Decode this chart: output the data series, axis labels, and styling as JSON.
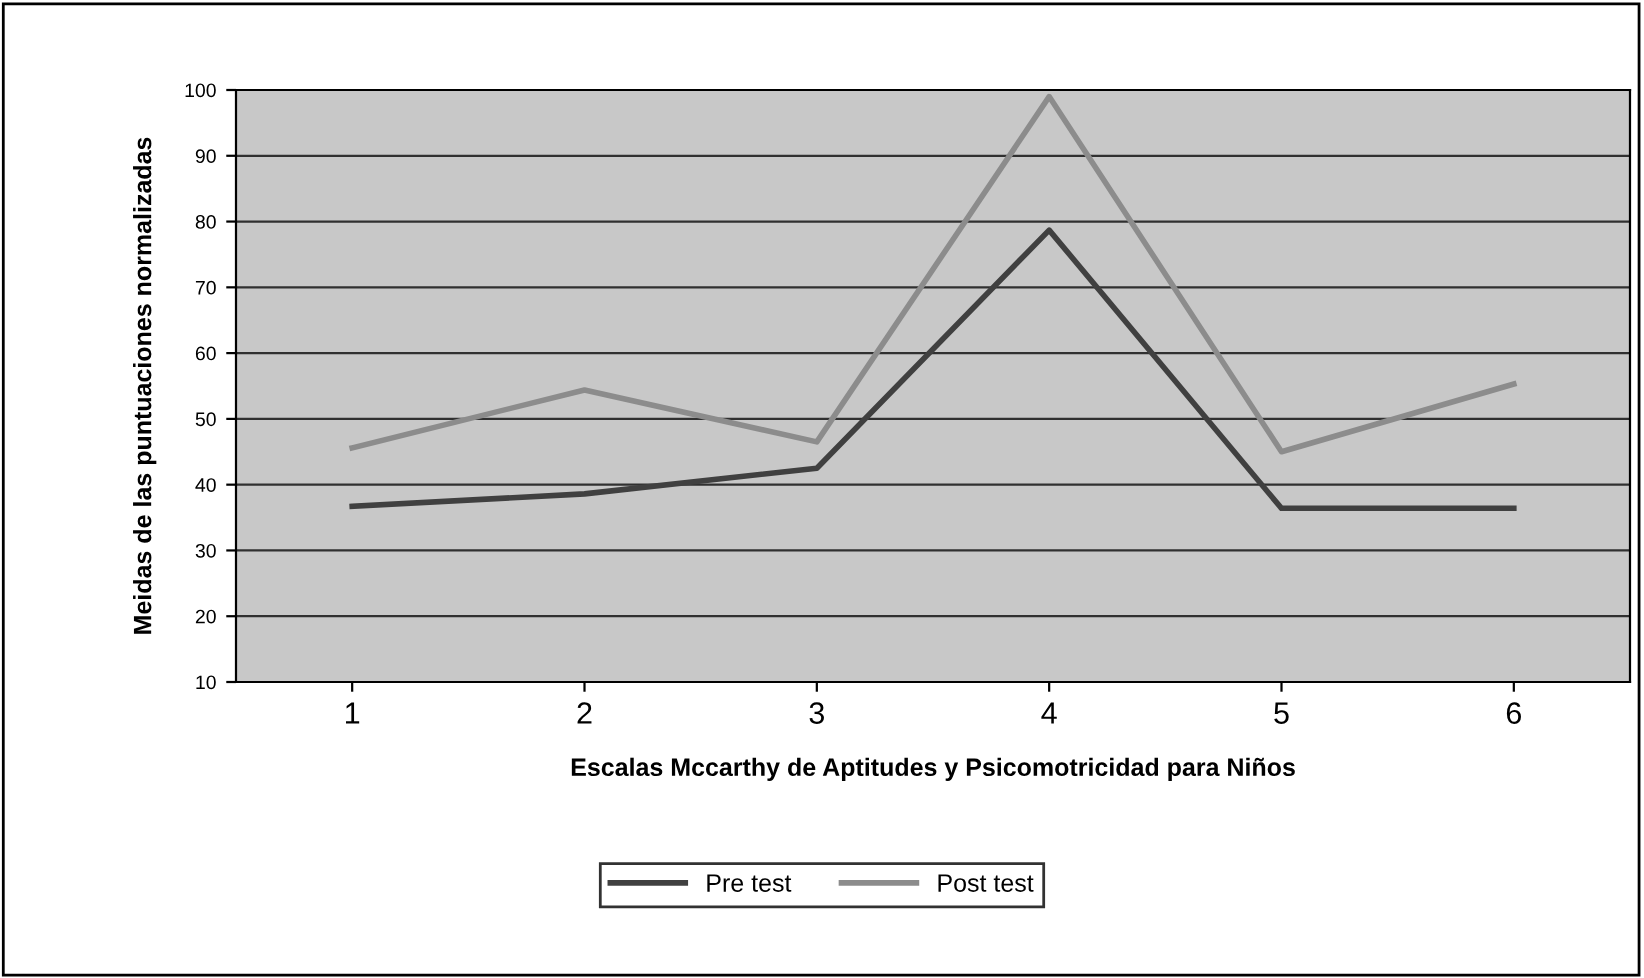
{
  "chart_data": {
    "type": "line",
    "xlabel": "Escalas Mccarthy de Aptitudes y Psicomotricidad para Niños",
    "ylabel": "Meidas de las puntuaciones normalizadas",
    "categories": [
      "1",
      "2",
      "3",
      "4",
      "5",
      "6"
    ],
    "series": [
      {
        "name": "Pre test",
        "color": "#404040",
        "values": [
          36.7,
          38.6,
          42.5,
          78.7,
          36.4,
          36.4
        ]
      },
      {
        "name": "Post test",
        "color": "#8c8c8c",
        "values": [
          45.6,
          54.4,
          46.5,
          99,
          45,
          55.3
        ]
      }
    ],
    "ylim": [
      10,
      100
    ],
    "yticks": [
      10,
      20,
      30,
      40,
      50,
      60,
      70,
      80,
      90,
      100
    ],
    "grid": "y",
    "legend": "bottom",
    "marker": "none",
    "line_style": "solid"
  }
}
